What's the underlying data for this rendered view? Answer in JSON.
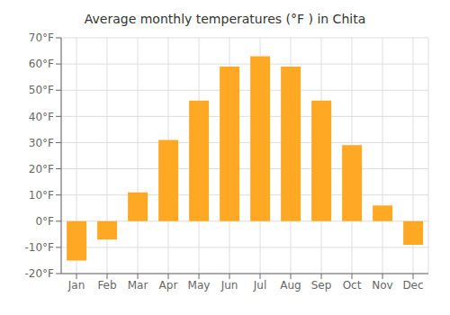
{
  "chart_data": {
    "type": "bar",
    "title": "Average monthly temperatures (°F ) in Chita",
    "categories": [
      "Jan",
      "Feb",
      "Mar",
      "Apr",
      "May",
      "Jun",
      "Jul",
      "Aug",
      "Sep",
      "Oct",
      "Nov",
      "Dec"
    ],
    "values": [
      -15,
      -7,
      11,
      31,
      46,
      59,
      63,
      59,
      46,
      29,
      6,
      -9
    ],
    "color": "#FFA824",
    "ylim": [
      -20,
      70
    ],
    "yticks": [
      {
        "value": -20,
        "label": "-20°F"
      },
      {
        "value": -10,
        "label": "-10°F"
      },
      {
        "value": 0,
        "label": "0°F"
      },
      {
        "value": 10,
        "label": "10°F"
      },
      {
        "value": 20,
        "label": "20°F"
      },
      {
        "value": 30,
        "label": "30°F"
      },
      {
        "value": 40,
        "label": "40°F"
      },
      {
        "value": 50,
        "label": "50°F"
      },
      {
        "value": 60,
        "label": "60°F"
      },
      {
        "value": 70,
        "label": "70°F"
      }
    ],
    "grid": true
  }
}
